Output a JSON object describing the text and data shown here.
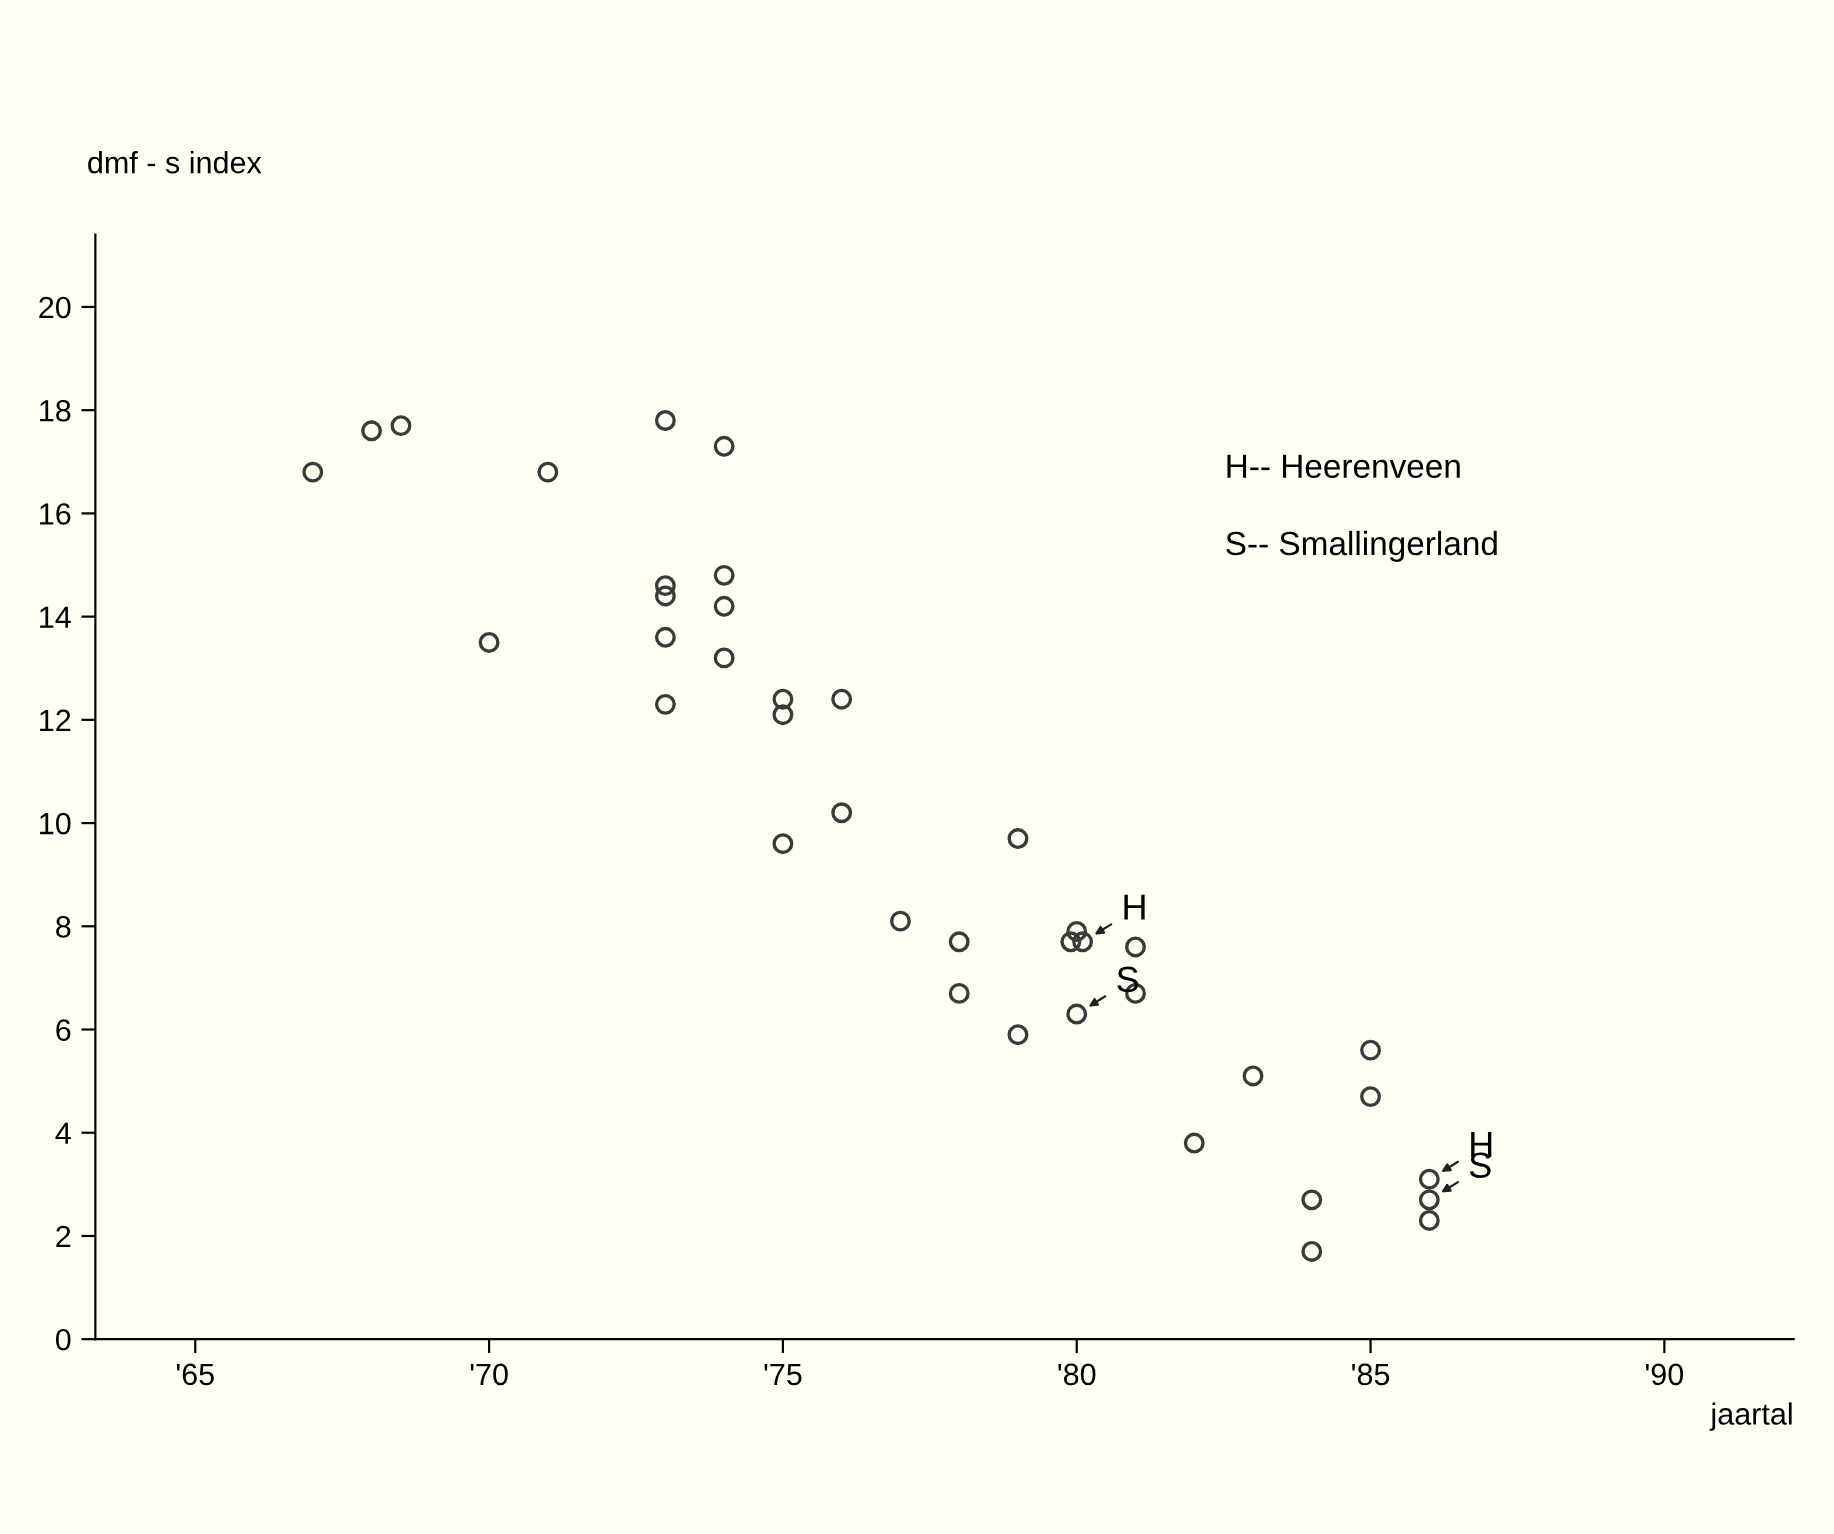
{
  "chart_data": {
    "type": "scatter",
    "ylabel": "dmf - s index",
    "xlabel": "jaartal",
    "marker": "circle",
    "grid": false,
    "xlim": [
      63.3,
      92.2
    ],
    "ylim": [
      0,
      21.4
    ],
    "xticks": [
      {
        "value": 65,
        "label": "'65"
      },
      {
        "value": 70,
        "label": "'70"
      },
      {
        "value": 75,
        "label": "'75"
      },
      {
        "value": 80,
        "label": "'80"
      },
      {
        "value": 85,
        "label": "'85"
      },
      {
        "value": 90,
        "label": "'90"
      }
    ],
    "yticks": [
      0,
      2,
      4,
      6,
      8,
      10,
      12,
      14,
      16,
      18,
      20
    ],
    "series": [
      {
        "color": "#3a3a3a",
        "x": [
          67,
          68,
          68.5,
          70,
          71,
          73,
          73,
          73,
          73,
          73,
          74,
          74,
          74,
          74,
          75,
          75,
          76,
          75,
          76,
          77,
          78,
          78,
          79,
          79,
          80,
          79.9,
          80.1,
          81,
          81,
          80,
          82,
          83,
          84,
          84,
          85,
          85,
          86,
          86,
          86
        ],
        "values": [
          16.8,
          17.6,
          17.7,
          13.5,
          16.8,
          17.8,
          14.6,
          14.4,
          13.6,
          12.3,
          17.3,
          14.8,
          14.2,
          13.2,
          12.4,
          12.1,
          12.4,
          9.6,
          10.2,
          8.1,
          7.7,
          6.7,
          9.7,
          5.9,
          7.9,
          7.7,
          7.7,
          7.6,
          6.7,
          6.3,
          3.8,
          5.1,
          2.7,
          1.7,
          5.6,
          4.7,
          3.1,
          2.7,
          2.3
        ]
      }
    ],
    "annotations": [
      {
        "text": "H",
        "x": 80.1,
        "y": 7.7
      },
      {
        "text": "S",
        "x": 80,
        "y": 6.3
      },
      {
        "text": "H",
        "x": 86,
        "y": 3.1
      },
      {
        "text": "S",
        "x": 86,
        "y": 2.7
      },
      "H-- Heerenveen",
      "S-- Smallingerland"
    ]
  }
}
